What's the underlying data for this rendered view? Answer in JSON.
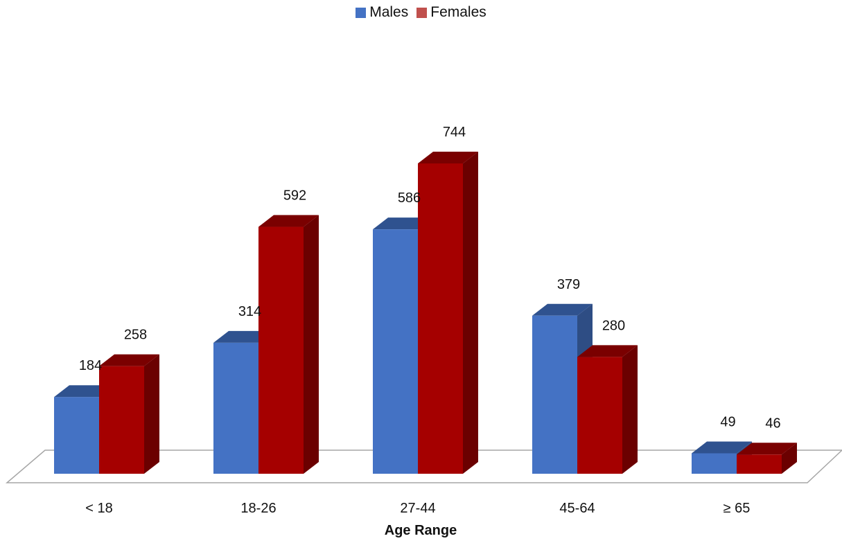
{
  "chart_data": {
    "type": "bar",
    "categories": [
      "< 18",
      "18-26",
      "27-44",
      "45-64",
      "≥ 65"
    ],
    "series": [
      {
        "name": "Males",
        "values": [
          184,
          314,
          586,
          379,
          49
        ],
        "color": "#4472C4"
      },
      {
        "name": "Females",
        "values": [
          258,
          592,
          744,
          280,
          46
        ],
        "color": "#A50000"
      }
    ],
    "xlabel": "Age Range",
    "ylabel": "",
    "ylim": [
      0,
      800
    ],
    "grid": false,
    "legend_position": "top-center",
    "style": "3d-clustered-column"
  }
}
